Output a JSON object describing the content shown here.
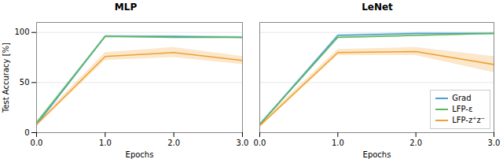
{
  "chart_data": [
    {
      "type": "line",
      "title": "MLP",
      "x": [
        0,
        1,
        2,
        3
      ],
      "xlim": [
        0,
        3
      ],
      "xticks": [
        0,
        1,
        2,
        3
      ],
      "xlabel": "Epochs",
      "ylabel": "Test Accuracy [%]",
      "ylim": [
        0,
        110
      ],
      "yticks": [
        0,
        50,
        100
      ],
      "grid": true,
      "series": [
        {
          "name": "Grad",
          "color": "#4c9fca",
          "values": [
            8,
            96,
            96,
            95
          ],
          "std": [
            1,
            1,
            1,
            1
          ]
        },
        {
          "name": "LFP-ε",
          "color": "#5cb85c",
          "values": [
            10,
            96,
            95,
            95
          ],
          "std": [
            1,
            1,
            1,
            1
          ]
        },
        {
          "name": "LFP-z⁺z⁻",
          "color": "#f0a030",
          "values": [
            8,
            76,
            80,
            72
          ],
          "std": [
            2,
            4,
            5,
            4
          ]
        }
      ]
    },
    {
      "type": "line",
      "title": "LeNet",
      "x": [
        0,
        1,
        2,
        3
      ],
      "xlim": [
        0,
        3
      ],
      "xticks": [
        0,
        1,
        2,
        3
      ],
      "xlabel": "Epochs",
      "ylim": [
        0,
        110
      ],
      "yticks": [
        0,
        50,
        100
      ],
      "grid": true,
      "tick_labels": "x",
      "legend": "lower right",
      "series": [
        {
          "name": "Grad",
          "color": "#4c9fca",
          "values": [
            8,
            97,
            99,
            99
          ],
          "std": [
            1,
            1,
            1,
            1
          ]
        },
        {
          "name": "LFP-ε",
          "color": "#5cb85c",
          "values": [
            8,
            95,
            97,
            99
          ],
          "std": [
            1,
            1,
            1,
            1
          ]
        },
        {
          "name": "LFP-z⁺z⁻",
          "color": "#f0a030",
          "values": [
            7,
            80,
            81,
            68
          ],
          "std": [
            2,
            3,
            4,
            8
          ]
        }
      ]
    }
  ]
}
